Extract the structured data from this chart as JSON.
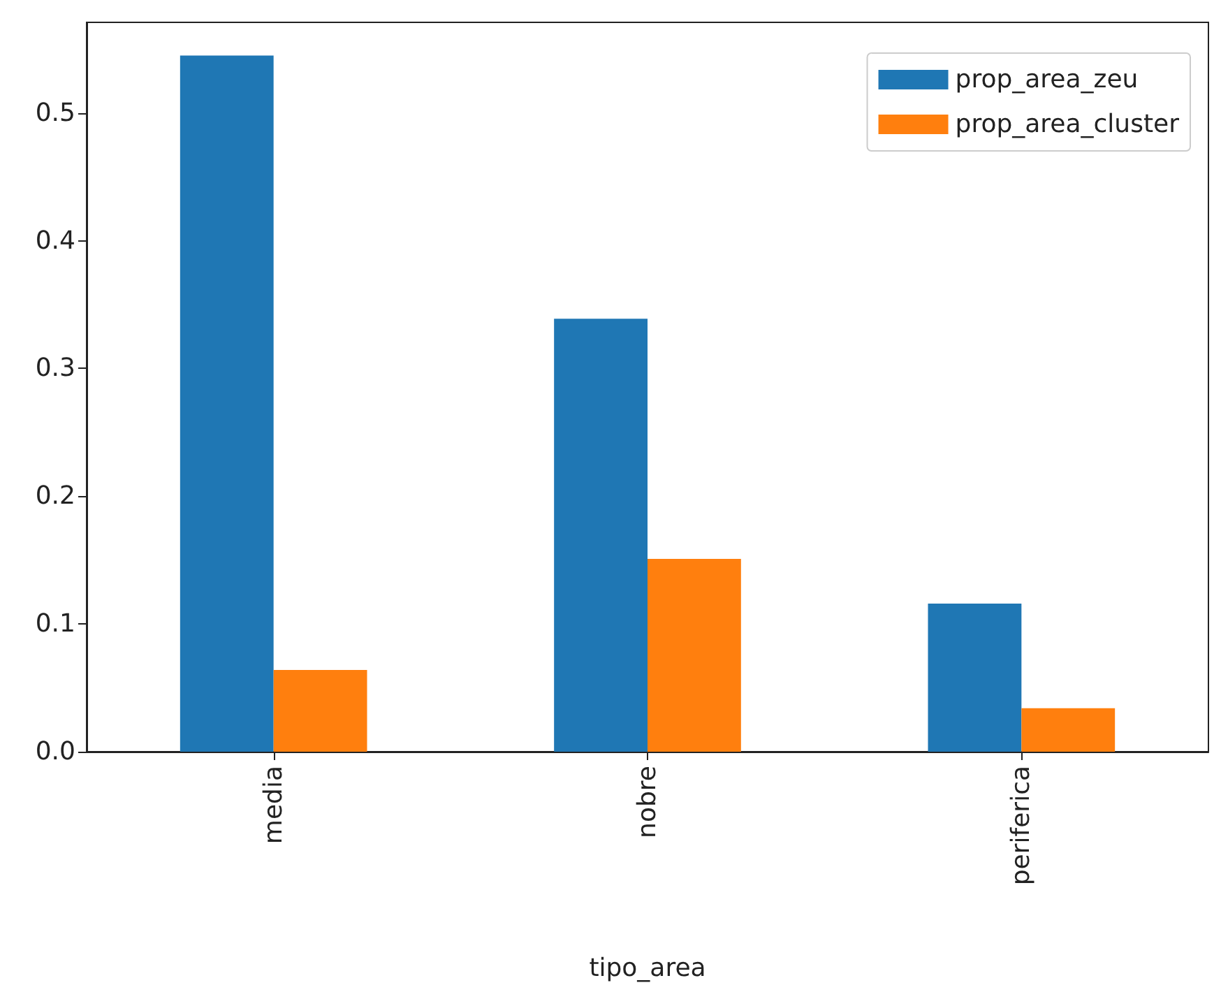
{
  "chart_data": {
    "type": "bar",
    "xlabel": "tipo_area",
    "categories": [
      "media",
      "nobre",
      "periferica"
    ],
    "series": [
      {
        "name": "prop_area_zeu",
        "color": "#1f77b4",
        "values": [
          0.545,
          0.339,
          0.116
        ]
      },
      {
        "name": "prop_area_cluster",
        "color": "#ff7f0e",
        "values": [
          0.064,
          0.151,
          0.034
        ]
      }
    ],
    "ylim": [
      0,
      0.571
    ],
    "yticks": [
      {
        "value": 0,
        "label": "0.0"
      },
      0.1,
      0.2,
      0.3,
      0.4,
      0.5
    ],
    "grid": false,
    "legend": "top right"
  }
}
